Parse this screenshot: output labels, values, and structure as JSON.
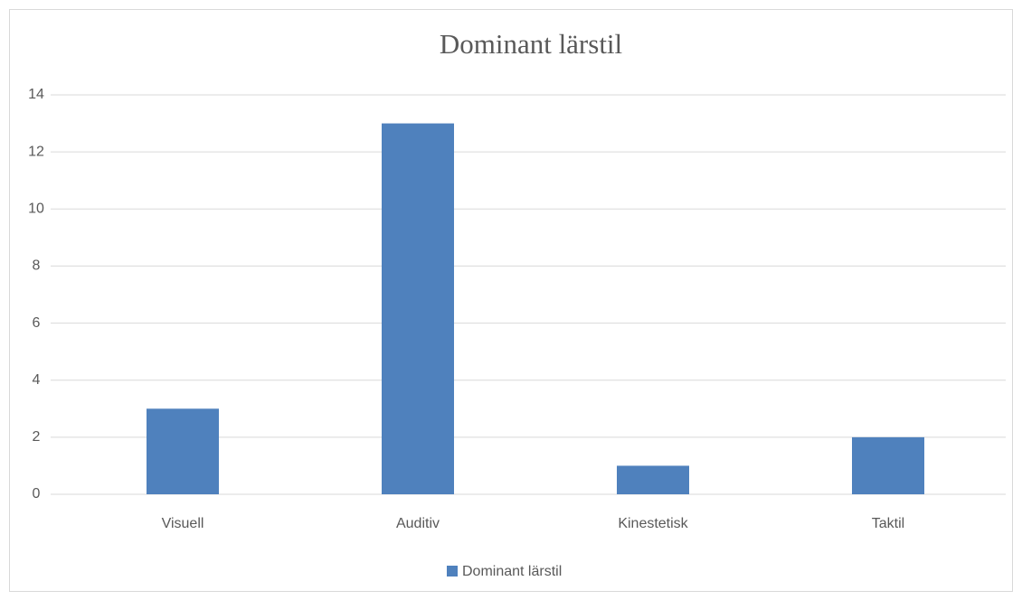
{
  "chart_data": {
    "type": "bar",
    "title": "Dominant lärstil",
    "categories": [
      "Visuell",
      "Auditiv",
      "Kinestetisk",
      "Taktil"
    ],
    "series": [
      {
        "name": "Dominant lärstil",
        "color": "#4f81bd",
        "values": [
          3,
          13,
          1,
          2
        ]
      }
    ],
    "ylim": [
      0,
      14
    ],
    "yticks": [
      0,
      2,
      4,
      6,
      8,
      10,
      12,
      14
    ],
    "grid": true,
    "legend": "bottom"
  }
}
